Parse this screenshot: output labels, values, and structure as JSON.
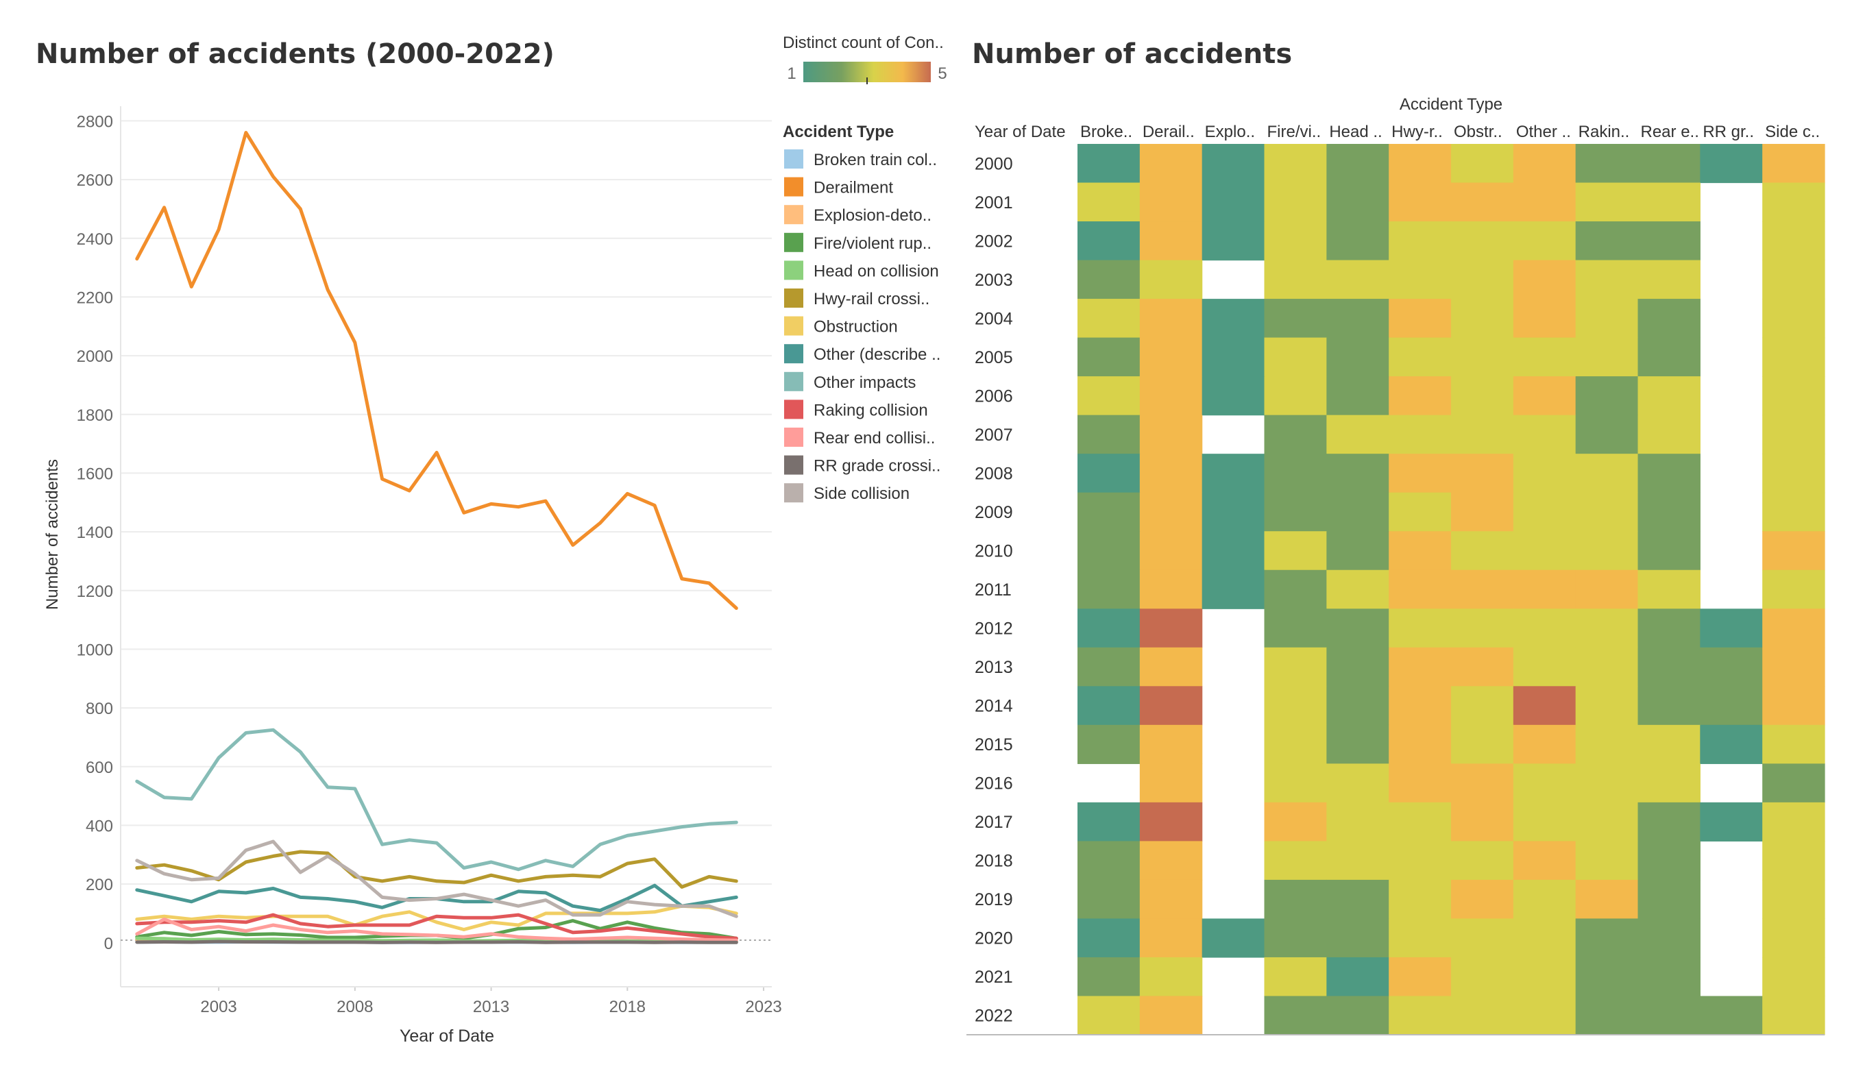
{
  "chart_data": [
    {
      "type": "line",
      "title": "Number of accidents (2000-2022)",
      "xlabel": "Year of Date",
      "ylabel": "Number of accidents",
      "ylim": [
        -150,
        2850
      ],
      "xlim": [
        1999.4,
        2023.3
      ],
      "yticks": [
        0,
        200,
        400,
        600,
        800,
        1000,
        1200,
        1400,
        1600,
        1800,
        2000,
        2200,
        2400,
        2600,
        2800
      ],
      "xticks": [
        2003,
        2008,
        2013,
        2018,
        2023
      ],
      "x": [
        2000,
        2001,
        2002,
        2003,
        2004,
        2005,
        2006,
        2007,
        2008,
        2009,
        2010,
        2011,
        2012,
        2013,
        2014,
        2015,
        2016,
        2017,
        2018,
        2019,
        2020,
        2021,
        2022
      ],
      "legend_title": "Accident Type",
      "series": [
        {
          "name": "Broken train col..",
          "color": "#a0cbe8",
          "values": [
            2,
            3,
            2,
            2,
            3,
            2,
            2,
            2,
            2,
            1,
            1,
            2,
            2,
            2,
            2,
            2,
            1,
            2,
            2,
            2,
            1,
            2,
            2
          ]
        },
        {
          "name": "Derailment",
          "color": "#f28e2b",
          "values": [
            2330,
            2505,
            2235,
            2430,
            2760,
            2610,
            2500,
            2225,
            2045,
            1580,
            1540,
            1670,
            1465,
            1495,
            1485,
            1505,
            1355,
            1430,
            1530,
            1490,
            1240,
            1225,
            1140
          ]
        },
        {
          "name": "Explosion-deto..",
          "color": "#ffbe7d",
          "values": [
            10,
            12,
            8,
            10,
            9,
            8,
            10,
            8,
            7,
            6,
            6,
            5,
            5,
            4,
            5,
            4,
            4,
            4,
            3,
            4,
            3,
            3,
            3
          ]
        },
        {
          "name": "Fire/violent rup..",
          "color": "#59a14f",
          "values": [
            20,
            35,
            25,
            38,
            28,
            30,
            26,
            18,
            18,
            22,
            25,
            25,
            15,
            28,
            48,
            52,
            75,
            48,
            70,
            50,
            35,
            30,
            15
          ]
        },
        {
          "name": "Head on collision",
          "color": "#8cd17d",
          "values": [
            15,
            14,
            10,
            12,
            10,
            12,
            10,
            8,
            8,
            7,
            8,
            9,
            6,
            7,
            8,
            6,
            5,
            8,
            6,
            5,
            5,
            6,
            4
          ]
        },
        {
          "name": "Hwy-rail crossi..",
          "color": "#b6992d",
          "values": [
            255,
            265,
            245,
            215,
            275,
            295,
            310,
            305,
            225,
            210,
            225,
            210,
            205,
            230,
            210,
            225,
            230,
            225,
            270,
            285,
            190,
            225,
            210
          ]
        },
        {
          "name": "Obstruction",
          "color": "#f1ce63",
          "values": [
            80,
            90,
            80,
            90,
            85,
            90,
            90,
            90,
            60,
            90,
            105,
            70,
            45,
            70,
            60,
            100,
            100,
            100,
            100,
            105,
            125,
            120,
            100
          ]
        },
        {
          "name": "Other (describe ..",
          "color": "#499894",
          "values": [
            180,
            160,
            140,
            175,
            170,
            185,
            155,
            150,
            140,
            120,
            150,
            150,
            140,
            140,
            175,
            170,
            125,
            110,
            150,
            195,
            125,
            140,
            155
          ]
        },
        {
          "name": "Other impacts",
          "color": "#86bcb6",
          "values": [
            550,
            495,
            490,
            630,
            715,
            725,
            650,
            530,
            525,
            335,
            350,
            340,
            255,
            275,
            250,
            280,
            260,
            335,
            365,
            380,
            395,
            405,
            410
          ]
        },
        {
          "name": "Raking collision",
          "color": "#e15759",
          "values": [
            65,
            70,
            70,
            75,
            70,
            95,
            65,
            55,
            60,
            60,
            60,
            90,
            85,
            85,
            95,
            65,
            35,
            40,
            50,
            40,
            30,
            20,
            15
          ]
        },
        {
          "name": "Rear end collisi..",
          "color": "#ff9d9a",
          "values": [
            30,
            80,
            45,
            55,
            40,
            60,
            45,
            35,
            40,
            30,
            28,
            25,
            20,
            30,
            20,
            15,
            12,
            15,
            18,
            15,
            12,
            10,
            8
          ]
        },
        {
          "name": "RR grade crossi..",
          "color": "#79706e",
          "values": [
            2,
            3,
            2,
            4,
            3,
            3,
            2,
            2,
            2,
            1,
            2,
            1,
            2,
            2,
            3,
            1,
            2,
            2,
            2,
            1,
            2,
            1,
            1
          ]
        },
        {
          "name": "Side collision",
          "color": "#bab0ac",
          "values": [
            280,
            235,
            215,
            220,
            315,
            345,
            240,
            295,
            235,
            155,
            145,
            150,
            165,
            145,
            125,
            145,
            95,
            95,
            140,
            130,
            125,
            125,
            90
          ]
        }
      ]
    },
    {
      "type": "heatmap",
      "title": "Number of accidents",
      "column_header": "Accident Type",
      "row_header": "Year of Date",
      "columns": [
        "Broke..",
        "Derail..",
        "Explo..",
        "Fire/vi..",
        "Head ..",
        "Hwy-r..",
        "Obstr..",
        "Other ..",
        "Rakin..",
        "Rear e..",
        "RR gr..",
        "Side c.."
      ],
      "rows": [
        "2000",
        "2001",
        "2002",
        "2003",
        "2004",
        "2005",
        "2006",
        "2007",
        "2008",
        "2009",
        "2010",
        "2011",
        "2012",
        "2013",
        "2014",
        "2015",
        "2016",
        "2017",
        "2018",
        "2019",
        "2020",
        "2021",
        "2022"
      ],
      "color_legend": {
        "title": "Distinct count of Con..",
        "min": "1",
        "max": "5",
        "min_value": 1,
        "max_value": 5,
        "colors": [
          "#4e9a82",
          "#78a060",
          "#d8d24a",
          "#f3b94c",
          "#c66b50"
        ]
      },
      "values": [
        [
          1,
          4,
          1,
          3,
          2,
          4,
          3,
          4,
          2,
          2,
          1,
          4
        ],
        [
          3,
          4,
          1,
          3,
          2,
          4,
          4,
          4,
          3,
          3,
          null,
          3
        ],
        [
          1,
          4,
          1,
          3,
          2,
          3,
          3,
          3,
          2,
          2,
          null,
          3
        ],
        [
          2,
          3,
          null,
          3,
          3,
          3,
          3,
          4,
          3,
          3,
          null,
          3
        ],
        [
          3,
          4,
          1,
          2,
          2,
          4,
          3,
          4,
          3,
          2,
          null,
          3
        ],
        [
          2,
          4,
          1,
          3,
          2,
          3,
          3,
          3,
          3,
          2,
          null,
          3
        ],
        [
          3,
          4,
          1,
          3,
          2,
          4,
          3,
          4,
          2,
          3,
          null,
          3
        ],
        [
          2,
          4,
          null,
          2,
          3,
          3,
          3,
          3,
          2,
          3,
          null,
          3
        ],
        [
          1,
          4,
          1,
          2,
          2,
          4,
          4,
          3,
          3,
          2,
          null,
          3
        ],
        [
          2,
          4,
          1,
          2,
          2,
          3,
          4,
          3,
          3,
          2,
          null,
          3
        ],
        [
          2,
          4,
          1,
          3,
          2,
          4,
          3,
          3,
          3,
          2,
          null,
          4
        ],
        [
          2,
          4,
          1,
          2,
          3,
          4,
          4,
          4,
          4,
          3,
          null,
          3
        ],
        [
          1,
          5,
          null,
          2,
          2,
          3,
          3,
          3,
          3,
          2,
          1,
          4
        ],
        [
          2,
          4,
          null,
          3,
          2,
          4,
          4,
          3,
          3,
          2,
          2,
          4
        ],
        [
          1,
          5,
          null,
          3,
          2,
          4,
          3,
          5,
          3,
          2,
          2,
          4
        ],
        [
          2,
          4,
          null,
          3,
          2,
          4,
          3,
          4,
          3,
          3,
          1,
          3
        ],
        [
          null,
          4,
          null,
          3,
          3,
          4,
          4,
          3,
          3,
          3,
          null,
          2
        ],
        [
          1,
          5,
          null,
          4,
          3,
          3,
          4,
          3,
          3,
          2,
          1,
          3
        ],
        [
          2,
          4,
          null,
          3,
          3,
          3,
          3,
          4,
          3,
          2,
          null,
          3
        ],
        [
          2,
          4,
          null,
          2,
          2,
          3,
          4,
          3,
          4,
          2,
          null,
          3
        ],
        [
          1,
          4,
          1,
          2,
          2,
          3,
          3,
          3,
          2,
          2,
          null,
          3
        ],
        [
          2,
          3,
          null,
          3,
          1,
          4,
          3,
          3,
          2,
          2,
          null,
          3
        ],
        [
          3,
          4,
          null,
          2,
          2,
          3,
          3,
          3,
          2,
          2,
          2,
          3
        ]
      ]
    }
  ]
}
